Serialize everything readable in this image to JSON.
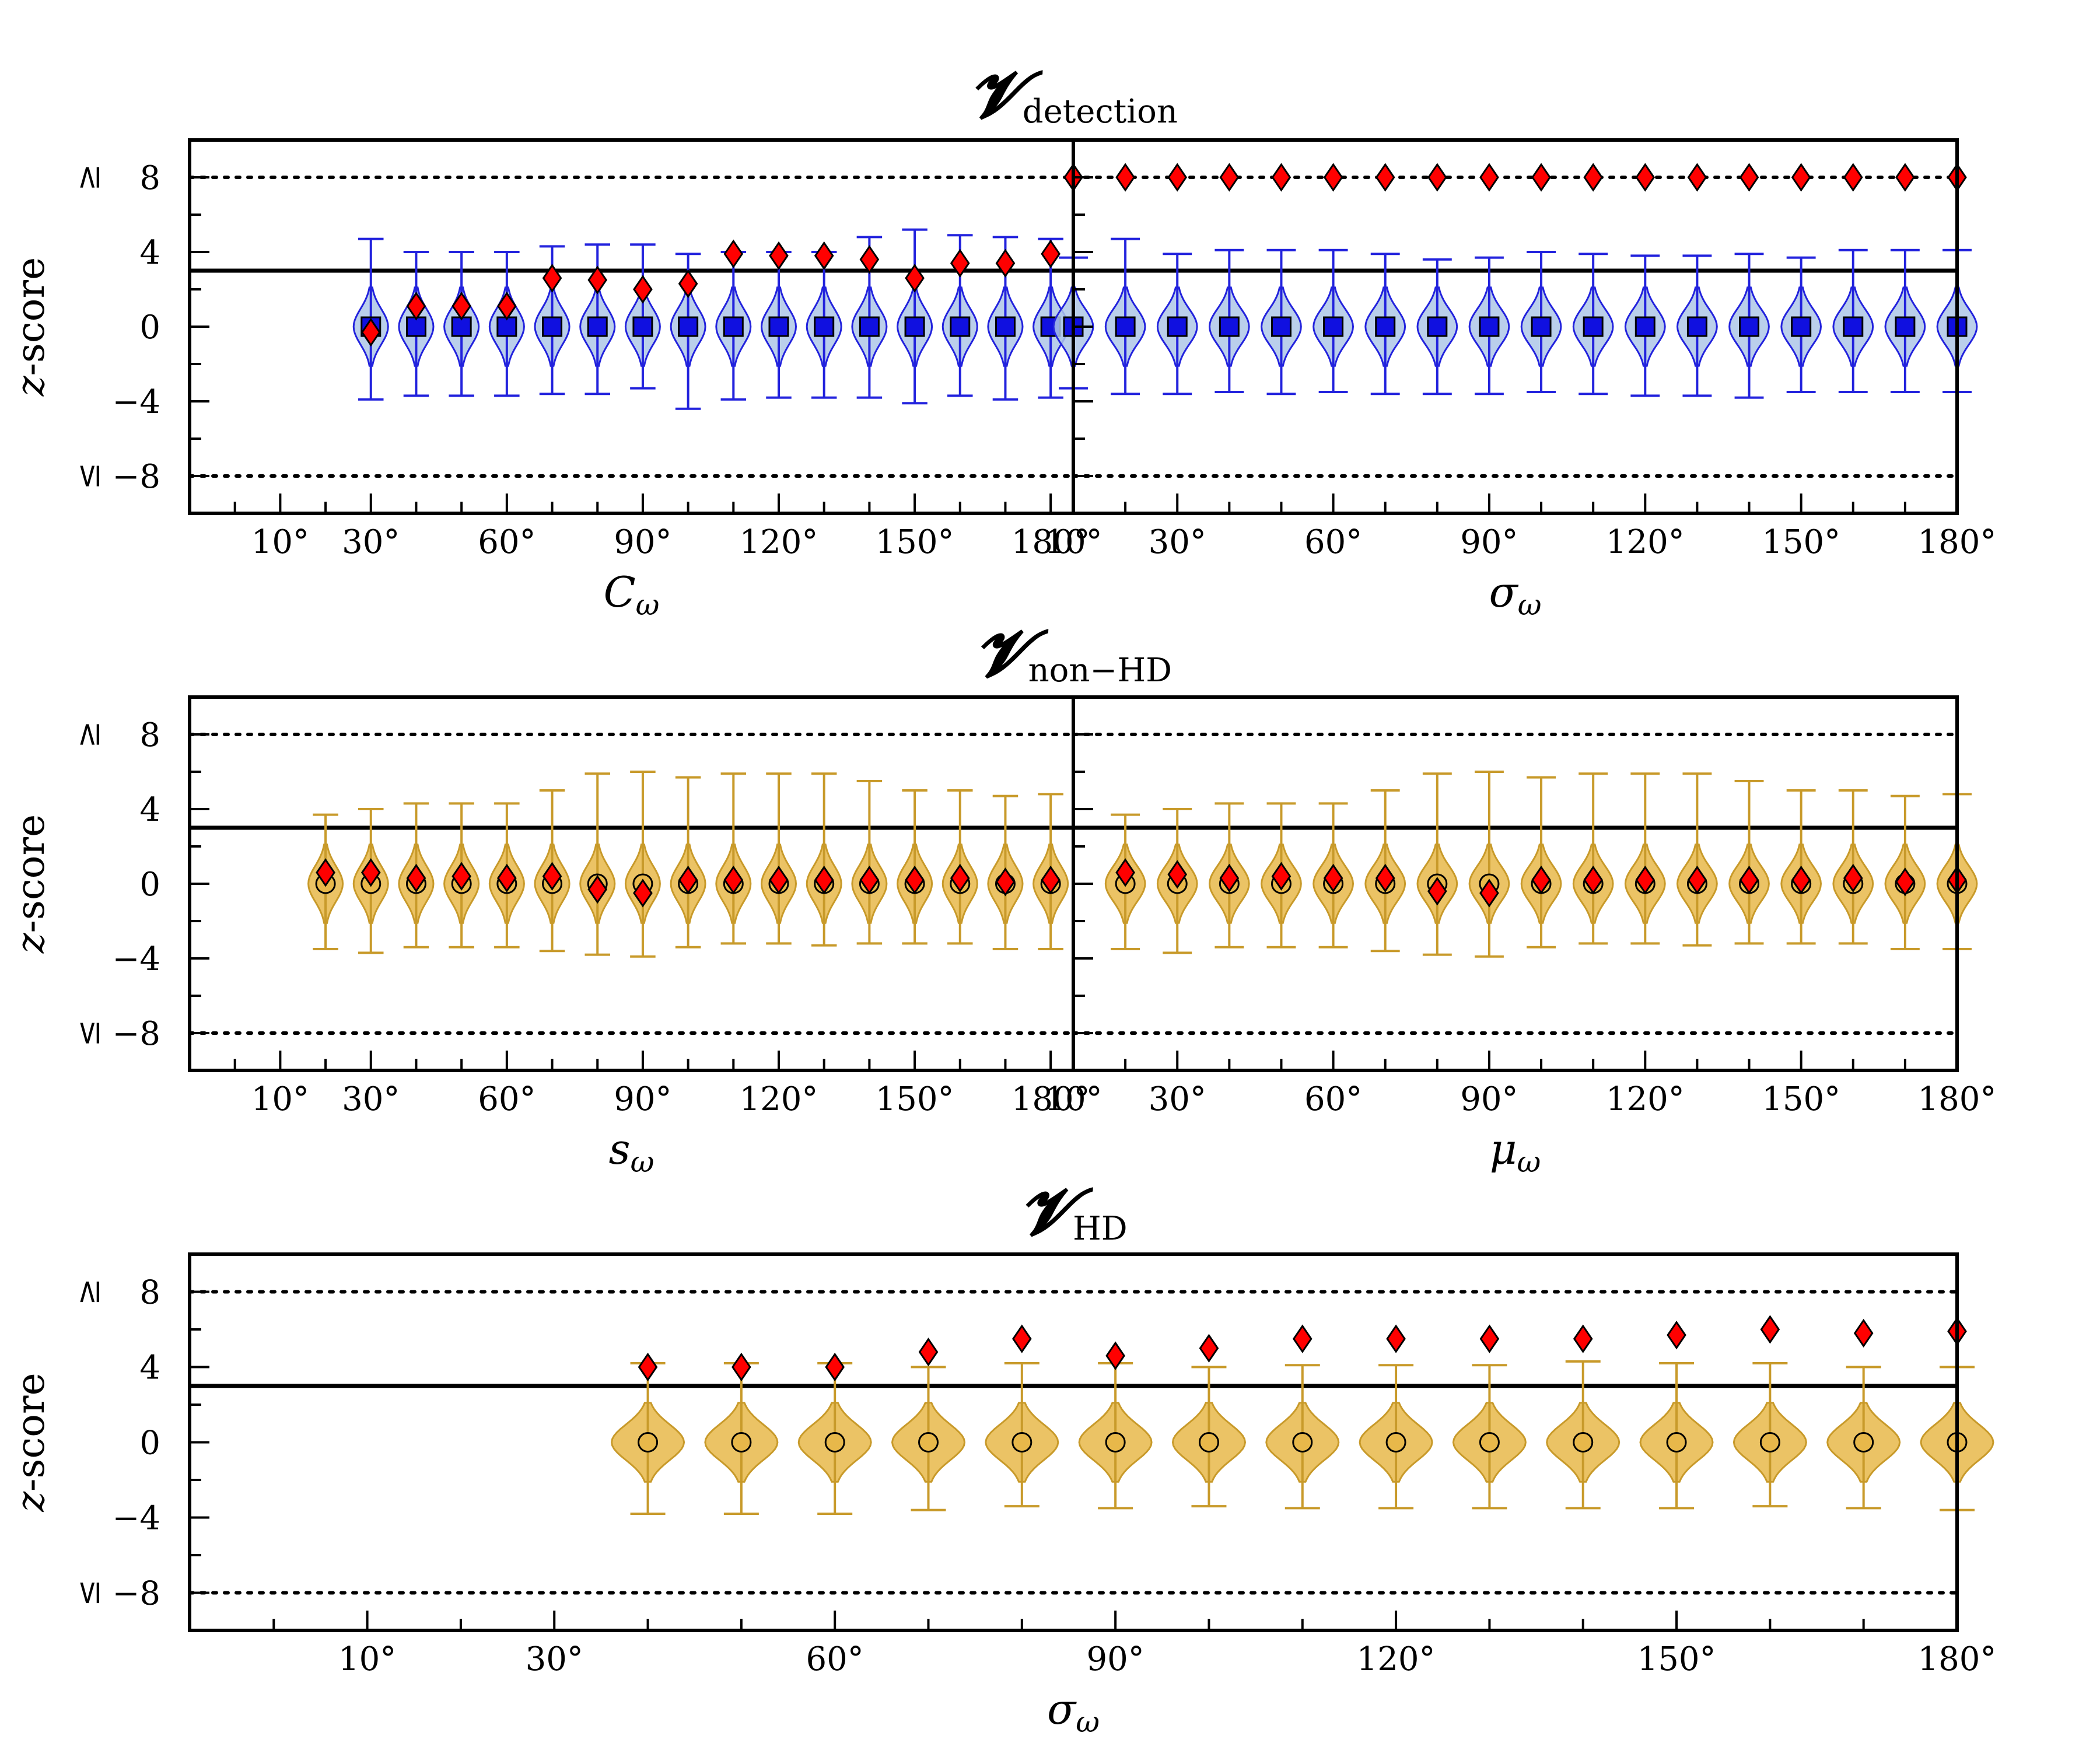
{
  "figure": {
    "row_titles": [
      {
        "main": "𝓥",
        "sub": "detection"
      },
      {
        "main": "𝓥",
        "sub": "non−HD"
      },
      {
        "main": "𝓥",
        "sub": "HD"
      }
    ],
    "y_axis_label": "z-score",
    "y_tick_labels": [
      "≤ −8",
      "−4",
      "0",
      "4",
      "≥ 8"
    ],
    "colors": {
      "detection_fill": "#aec7e8",
      "detection_edge": "#2222dd",
      "null_marker": "#1010e0",
      "hd_fill": "#e8b84a",
      "hd_edge": "#c89a2a",
      "observed_marker": "#ff0000"
    },
    "marker_legend": {
      "null_median_detection": "blue square",
      "null_median_hd": "gold circle",
      "observed": "red diamond"
    }
  },
  "chart_data": [
    {
      "type": "violin",
      "panel": "detection-left",
      "xlabel": "C_ω",
      "x_tick_labels": [
        "10°",
        "30°",
        "60°",
        "90°",
        "120°",
        "150°",
        "180°"
      ],
      "x_ticks_deg": [
        10,
        30,
        60,
        90,
        120,
        150,
        180
      ],
      "xlim_deg": [
        -10,
        185
      ],
      "ylim": [
        -10,
        10
      ],
      "threshold": 3,
      "clip_lines": [
        -8,
        8
      ],
      "x_deg": [
        30,
        40,
        50,
        60,
        70,
        80,
        90,
        100,
        110,
        120,
        130,
        140,
        150,
        160,
        170,
        180
      ],
      "null_median": [
        0,
        0,
        0,
        0,
        0,
        0,
        0,
        0,
        0,
        0,
        0,
        0,
        0,
        0,
        0,
        0
      ],
      "null_min": [
        -3.9,
        -3.7,
        -3.7,
        -3.7,
        -3.6,
        -3.6,
        -3.3,
        -4.4,
        -3.9,
        -3.8,
        -3.8,
        -3.8,
        -4.1,
        -3.7,
        -3.9,
        -3.8
      ],
      "null_max": [
        4.7,
        4.0,
        4.0,
        4.0,
        4.3,
        4.4,
        4.4,
        3.9,
        4.0,
        4.0,
        4.0,
        4.8,
        5.2,
        4.9,
        4.8,
        4.7
      ],
      "observed": [
        -0.3,
        1.1,
        1.1,
        1.1,
        2.6,
        2.5,
        2.0,
        2.3,
        3.9,
        3.8,
        3.8,
        3.6,
        2.6,
        3.4,
        3.4,
        3.9
      ]
    },
    {
      "type": "violin",
      "panel": "detection-right",
      "xlabel": "σ_ω",
      "x_tick_labels": [
        "10°",
        "30°",
        "60°",
        "90°",
        "120°",
        "150°",
        "180°"
      ],
      "x_ticks_deg": [
        10,
        30,
        60,
        90,
        120,
        150,
        180
      ],
      "xlim_deg": [
        10,
        180
      ],
      "ylim": [
        -10,
        10
      ],
      "threshold": 3,
      "clip_lines": [
        -8,
        8
      ],
      "x_deg": [
        10,
        20,
        30,
        40,
        50,
        60,
        70,
        80,
        90,
        100,
        110,
        120,
        130,
        140,
        150,
        160,
        170,
        180
      ],
      "null_median": [
        0,
        0,
        0,
        0,
        0,
        0,
        0,
        0,
        0,
        0,
        0,
        0,
        0,
        0,
        0,
        0,
        0,
        0
      ],
      "null_min": [
        -3.3,
        -3.6,
        -3.6,
        -3.5,
        -3.6,
        -3.5,
        -3.6,
        -3.6,
        -3.6,
        -3.5,
        -3.6,
        -3.7,
        -3.7,
        -3.8,
        -3.5,
        -3.5,
        -3.5,
        -3.5
      ],
      "null_max": [
        3.7,
        4.7,
        3.9,
        4.1,
        4.1,
        4.1,
        3.9,
        3.6,
        3.7,
        4.0,
        3.9,
        3.8,
        3.8,
        3.9,
        3.7,
        4.1,
        4.1,
        4.1
      ],
      "observed": [
        8,
        8,
        8,
        8,
        8,
        8,
        8,
        8,
        8,
        8,
        8,
        8,
        8,
        8,
        8,
        8,
        8,
        8
      ]
    },
    {
      "type": "violin",
      "panel": "nonhd-left",
      "xlabel": "s_ω",
      "x_tick_labels": [
        "10°",
        "30°",
        "60°",
        "90°",
        "120°",
        "150°",
        "180°"
      ],
      "x_ticks_deg": [
        10,
        30,
        60,
        90,
        120,
        150,
        180
      ],
      "xlim_deg": [
        -10,
        185
      ],
      "ylim": [
        -10,
        10
      ],
      "threshold": 3,
      "clip_lines": [
        -8,
        8
      ],
      "x_deg": [
        20,
        30,
        40,
        50,
        60,
        70,
        80,
        90,
        100,
        110,
        120,
        130,
        140,
        150,
        160,
        170,
        180
      ],
      "null_median": [
        0,
        0,
        0,
        0,
        0,
        0,
        0,
        0,
        0,
        0,
        0,
        0,
        0,
        0,
        0,
        0,
        0
      ],
      "null_min": [
        -3.5,
        -3.7,
        -3.4,
        -3.4,
        -3.4,
        -3.6,
        -3.8,
        -3.9,
        -3.4,
        -3.2,
        -3.2,
        -3.3,
        -3.2,
        -3.2,
        -3.2,
        -3.5,
        -3.5
      ],
      "null_max": [
        3.7,
        4.0,
        4.3,
        4.3,
        4.3,
        5.0,
        5.9,
        6.0,
        5.7,
        5.9,
        5.9,
        5.9,
        5.5,
        5.0,
        5.0,
        4.7,
        4.8
      ],
      "observed": [
        0.6,
        0.6,
        0.3,
        0.4,
        0.3,
        0.4,
        -0.3,
        -0.5,
        0.2,
        0.2,
        0.2,
        0.2,
        0.2,
        0.2,
        0.3,
        0.1,
        0.2
      ]
    },
    {
      "type": "violin",
      "panel": "nonhd-right",
      "xlabel": "μ_ω",
      "x_tick_labels": [
        "10°",
        "30°",
        "60°",
        "90°",
        "120°",
        "150°",
        "180°"
      ],
      "x_ticks_deg": [
        10,
        30,
        60,
        90,
        120,
        150,
        180
      ],
      "xlim_deg": [
        10,
        180
      ],
      "ylim": [
        -10,
        10
      ],
      "threshold": 3,
      "clip_lines": [
        -8,
        8
      ],
      "x_deg": [
        20,
        30,
        40,
        50,
        60,
        70,
        80,
        90,
        100,
        110,
        120,
        130,
        140,
        150,
        160,
        170,
        180
      ],
      "null_median": [
        0,
        0,
        0,
        0,
        0,
        0,
        0,
        0,
        0,
        0,
        0,
        0,
        0,
        0,
        0,
        0,
        0
      ],
      "null_min": [
        -3.5,
        -3.7,
        -3.4,
        -3.4,
        -3.4,
        -3.6,
        -3.8,
        -3.9,
        -3.4,
        -3.2,
        -3.2,
        -3.3,
        -3.2,
        -3.2,
        -3.2,
        -3.5,
        -3.5
      ],
      "null_max": [
        3.7,
        4.0,
        4.3,
        4.3,
        4.3,
        5.0,
        5.9,
        6.0,
        5.7,
        5.9,
        5.9,
        5.9,
        5.5,
        5.0,
        5.0,
        4.7,
        4.8
      ],
      "observed": [
        0.6,
        0.5,
        0.3,
        0.4,
        0.3,
        0.3,
        -0.4,
        -0.5,
        0.2,
        0.2,
        0.2,
        0.2,
        0.2,
        0.2,
        0.3,
        0.1,
        0.2
      ]
    },
    {
      "type": "violin",
      "panel": "hd",
      "xlabel": "σ_ω",
      "x_tick_labels": [
        "10°",
        "30°",
        "60°",
        "90°",
        "120°",
        "150°",
        "180°"
      ],
      "x_ticks_deg": [
        10,
        30,
        60,
        90,
        120,
        150,
        180
      ],
      "xlim_deg": [
        -9,
        180
      ],
      "ylim": [
        -10,
        10
      ],
      "threshold": 3,
      "clip_lines": [
        -8,
        8
      ],
      "x_deg": [
        40,
        50,
        60,
        70,
        80,
        90,
        100,
        110,
        120,
        130,
        140,
        150,
        160,
        170,
        180
      ],
      "null_median": [
        0,
        0,
        0,
        0,
        0,
        0,
        0,
        0,
        0,
        0,
        0,
        0,
        0,
        0,
        0
      ],
      "null_min": [
        -3.8,
        -3.8,
        -3.8,
        -3.6,
        -3.4,
        -3.5,
        -3.4,
        -3.5,
        -3.5,
        -3.5,
        -3.5,
        -3.5,
        -3.4,
        -3.5,
        -3.6
      ],
      "null_max": [
        4.2,
        4.2,
        4.2,
        4.0,
        4.2,
        4.2,
        4.0,
        4.1,
        4.1,
        4.1,
        4.3,
        4.2,
        4.2,
        4.0,
        4.0
      ],
      "observed": [
        4.0,
        4.0,
        4.0,
        4.8,
        5.5,
        4.6,
        5.0,
        5.5,
        5.5,
        5.5,
        5.5,
        5.7,
        6.0,
        5.8,
        5.9
      ]
    }
  ]
}
